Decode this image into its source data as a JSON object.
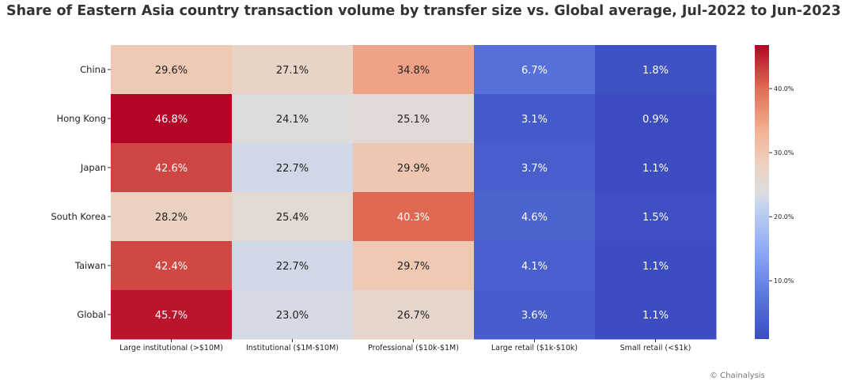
{
  "title": "Share of Eastern Asia country transaction volume by transfer size vs. Global average, Jul-2022 to Jun-2023",
  "credit": "© Chainalysis",
  "chart_data": {
    "type": "heatmap",
    "title": "Share of Eastern Asia country transaction volume by transfer size vs. Global average, Jul-2022 to Jun-2023",
    "rows": [
      "China",
      "Hong Kong",
      "Japan",
      "South Korea",
      "Taiwan",
      "Global"
    ],
    "columns": [
      "Large institutional (>$10M)",
      "Institutional ($1M-$10M)",
      "Professional ($10k-$1M)",
      "Large retail ($1k-$10k)",
      "Small retail (<$1k)"
    ],
    "values": [
      [
        29.6,
        27.1,
        34.8,
        6.7,
        1.8
      ],
      [
        46.8,
        24.1,
        25.1,
        3.1,
        0.9
      ],
      [
        42.6,
        22.7,
        29.9,
        3.7,
        1.1
      ],
      [
        28.2,
        25.4,
        40.3,
        4.6,
        1.5
      ],
      [
        42.4,
        22.7,
        29.7,
        4.1,
        1.1
      ],
      [
        45.7,
        23.0,
        26.7,
        3.6,
        1.1
      ]
    ],
    "labels": [
      [
        "29.6%",
        "27.1%",
        "34.8%",
        "6.7%",
        "1.8%"
      ],
      [
        "46.8%",
        "24.1%",
        "25.1%",
        "3.1%",
        "0.9%"
      ],
      [
        "42.6%",
        "22.7%",
        "29.9%",
        "3.7%",
        "1.1%"
      ],
      [
        "28.2%",
        "25.4%",
        "40.3%",
        "4.6%",
        "1.5%"
      ],
      [
        "42.4%",
        "22.7%",
        "29.7%",
        "4.1%",
        "1.1%"
      ],
      [
        "45.7%",
        "23.0%",
        "26.7%",
        "3.6%",
        "1.1%"
      ]
    ],
    "colormap": "coolwarm",
    "vmin": 0.9,
    "vmax": 46.8,
    "colorbar_ticks": [
      10,
      20,
      30,
      40
    ],
    "colorbar_tick_labels": [
      "10.0%",
      "20.0%",
      "30.0%",
      "40.0%"
    ]
  }
}
